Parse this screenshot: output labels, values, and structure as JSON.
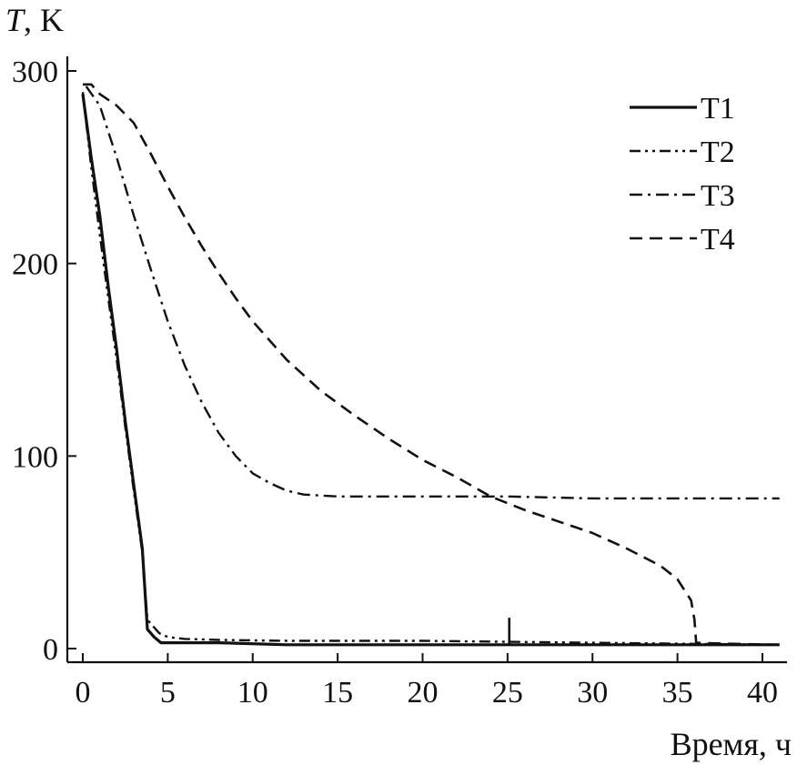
{
  "chart_data": {
    "type": "line",
    "title": "",
    "xlabel": "Время, ч",
    "ylabel": {
      "symbol": "T",
      "unit": ", K"
    },
    "xlim": [
      -1,
      42
    ],
    "ylim": [
      -5,
      310
    ],
    "xticks": [
      0,
      5,
      10,
      15,
      20,
      25,
      30,
      35,
      40
    ],
    "yticks": [
      0,
      100,
      200,
      300
    ],
    "grid": false,
    "legend_position": "top-right",
    "series": [
      {
        "name": "T1",
        "style": "solid",
        "points": [
          [
            0,
            288
          ],
          [
            0.5,
            255
          ],
          [
            1,
            225
          ],
          [
            1.5,
            188
          ],
          [
            2,
            155
          ],
          [
            2.5,
            118
          ],
          [
            3,
            85
          ],
          [
            3.5,
            52
          ],
          [
            3.8,
            10
          ],
          [
            4.2,
            6
          ],
          [
            4.6,
            3
          ],
          [
            5,
            3
          ],
          [
            8,
            3
          ],
          [
            12,
            2
          ],
          [
            20,
            2
          ],
          [
            30,
            2
          ],
          [
            41,
            2
          ]
        ]
      },
      {
        "name": "T2",
        "style": "dash-dot-dot",
        "points": [
          [
            0,
            289
          ],
          [
            0.5,
            250
          ],
          [
            1,
            215
          ],
          [
            1.5,
            182
          ],
          [
            2,
            150
          ],
          [
            2.5,
            115
          ],
          [
            3,
            82
          ],
          [
            3.5,
            50
          ],
          [
            3.8,
            15
          ],
          [
            4.5,
            8
          ],
          [
            5,
            6
          ],
          [
            6,
            5
          ],
          [
            8,
            4.5
          ],
          [
            12,
            4
          ],
          [
            20,
            4
          ],
          [
            30,
            3
          ],
          [
            41,
            2
          ]
        ]
      },
      {
        "name": "T3",
        "style": "dash-dot",
        "points": [
          [
            0.2,
            292
          ],
          [
            1,
            282
          ],
          [
            2,
            255
          ],
          [
            3,
            225
          ],
          [
            4,
            197
          ],
          [
            5,
            170
          ],
          [
            6,
            147
          ],
          [
            7,
            128
          ],
          [
            8,
            112
          ],
          [
            9,
            100
          ],
          [
            10,
            91
          ],
          [
            11,
            86
          ],
          [
            12,
            82
          ],
          [
            13,
            80
          ],
          [
            15,
            79
          ],
          [
            20,
            79
          ],
          [
            25,
            79
          ],
          [
            30,
            78
          ],
          [
            35,
            78
          ],
          [
            41,
            78
          ]
        ]
      },
      {
        "name": "T4",
        "style": "dashed",
        "points": [
          [
            0,
            293
          ],
          [
            0.5,
            293
          ],
          [
            1,
            288
          ],
          [
            2,
            282
          ],
          [
            3,
            273
          ],
          [
            4,
            257
          ],
          [
            5,
            240
          ],
          [
            6,
            224
          ],
          [
            7,
            209
          ],
          [
            8,
            195
          ],
          [
            9,
            182
          ],
          [
            10,
            170
          ],
          [
            12,
            150
          ],
          [
            14,
            134
          ],
          [
            16,
            121
          ],
          [
            18,
            109
          ],
          [
            20,
            98
          ],
          [
            22,
            89
          ],
          [
            24,
            79
          ],
          [
            26,
            72
          ],
          [
            28,
            66
          ],
          [
            30,
            60
          ],
          [
            32,
            52
          ],
          [
            34,
            43
          ],
          [
            35,
            36
          ],
          [
            35.8,
            25
          ],
          [
            36,
            15
          ],
          [
            36.1,
            3
          ],
          [
            38,
            2.5
          ],
          [
            41,
            2
          ]
        ]
      }
    ],
    "annotations": [
      {
        "type": "spike",
        "x": 25.1,
        "y_from": 2,
        "y_to": 16
      }
    ]
  }
}
